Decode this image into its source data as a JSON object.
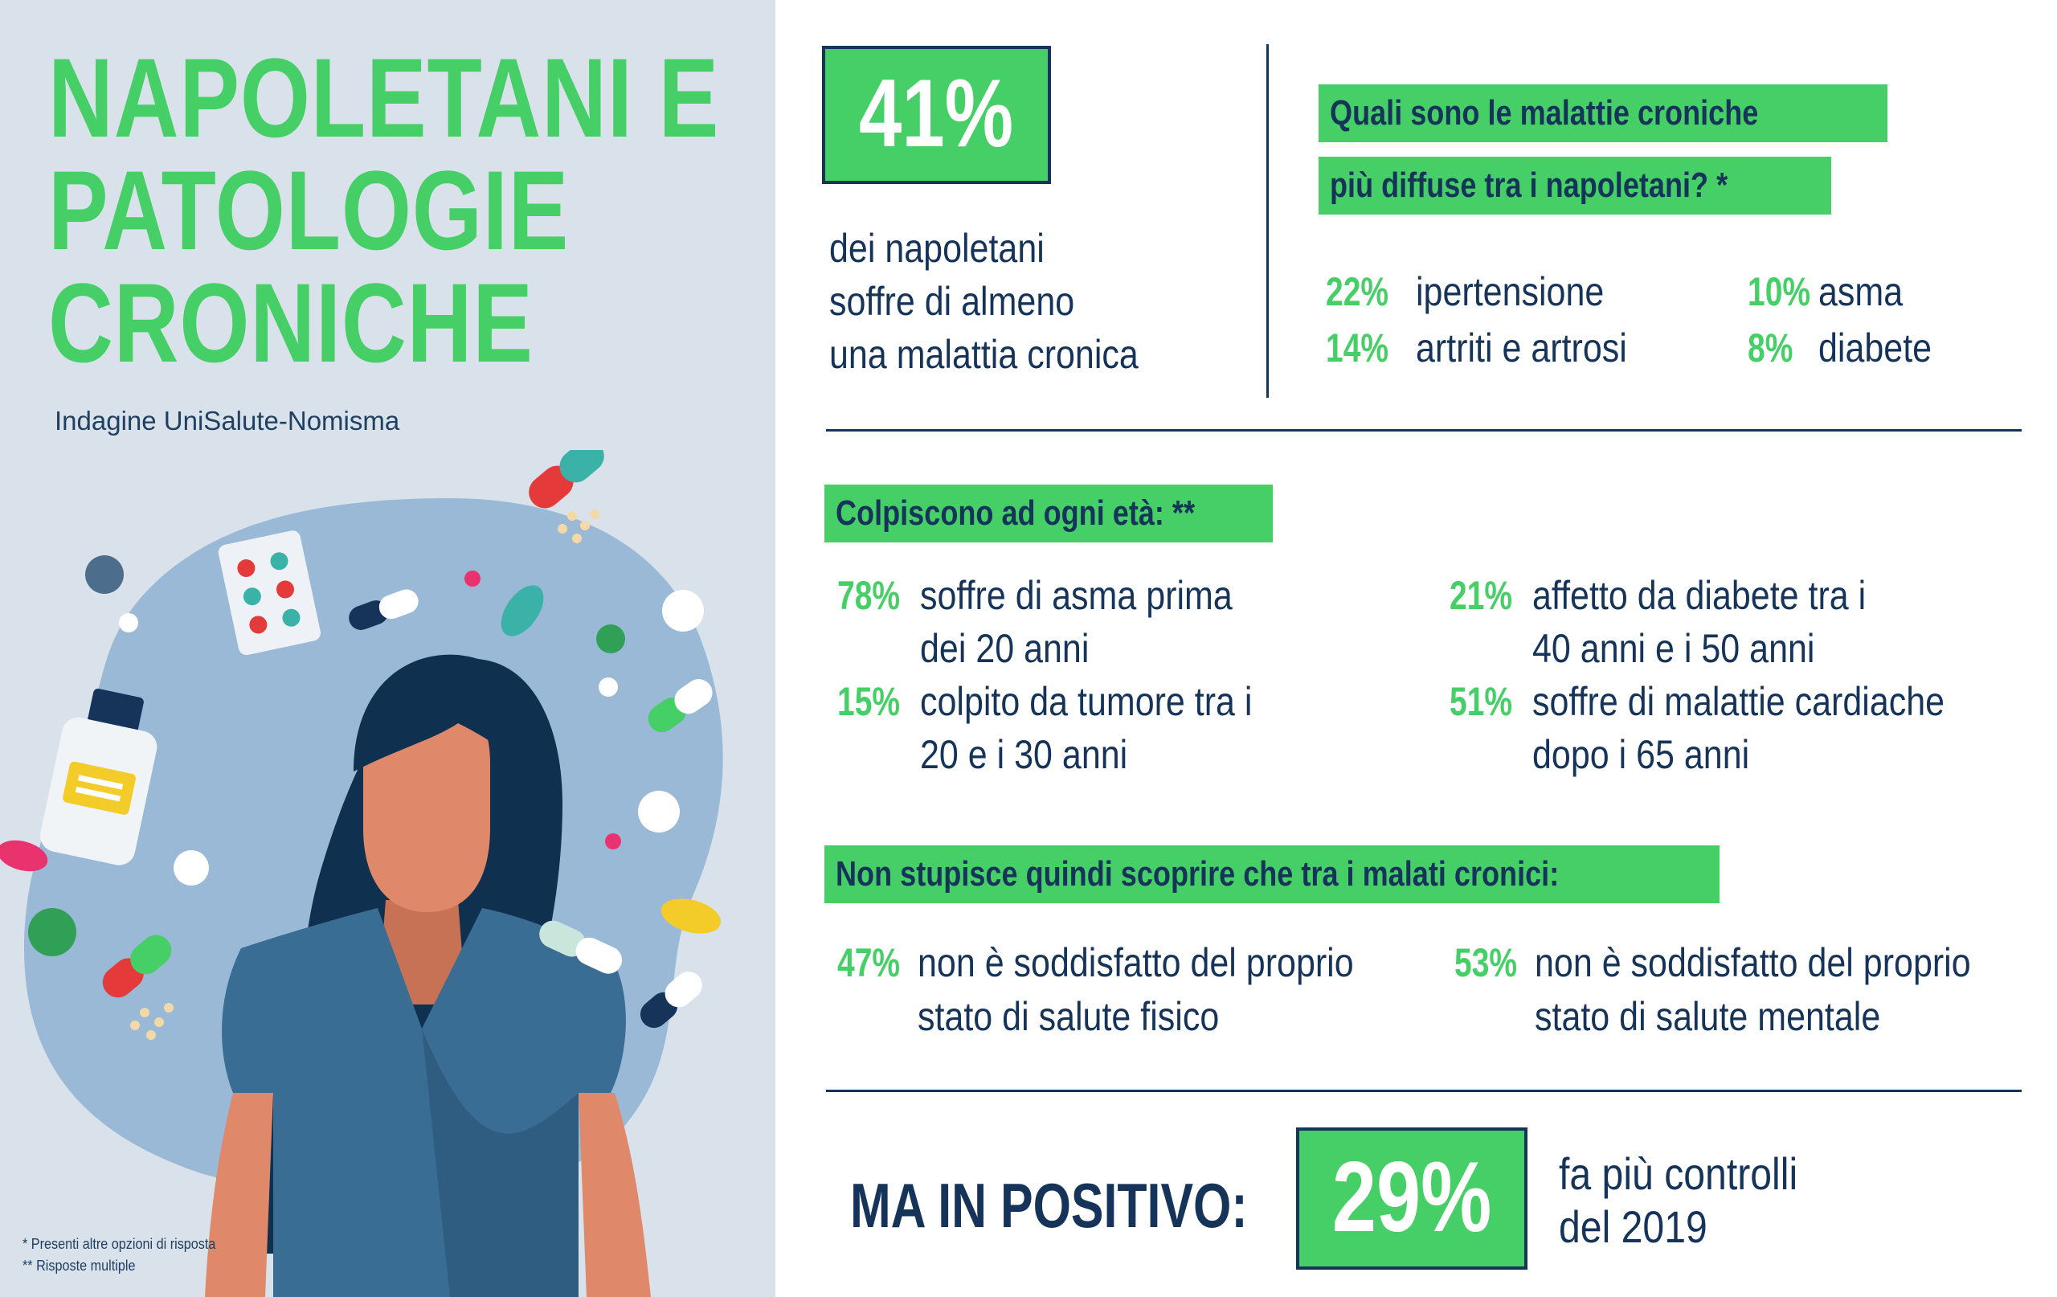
{
  "title": {
    "line1": "NAPOLETANI E",
    "line2": "PATOLOGIE",
    "line3": "CRONICHE"
  },
  "subtitle": "Indagine UniSalute-Nomisma",
  "footnotes": {
    "one": "* Presenti altre opzioni di risposta",
    "two": "** Risposte multiple"
  },
  "headline": {
    "percent": "41%",
    "line1": "dei napoletani",
    "line2": "soffre di almeno",
    "line3": "una malattia cronica"
  },
  "diseases": {
    "question_line1": "Quali sono le malattie croniche",
    "question_line2": "più diffuse tra i napoletani? *",
    "items": [
      {
        "pct": "22%",
        "label": "ipertensione"
      },
      {
        "pct": "14%",
        "label": "artriti e artrosi"
      },
      {
        "pct": "10%",
        "label": "asma"
      },
      {
        "pct": "8%",
        "label": "diabete"
      }
    ]
  },
  "ages": {
    "heading": "Colpiscono ad ogni età: **",
    "items": [
      {
        "pct": "78%",
        "line1": "soffre di asma prima",
        "line2": "dei 20 anni"
      },
      {
        "pct": "15%",
        "line1": "colpito da tumore tra i",
        "line2": "20 e i 30 anni"
      },
      {
        "pct": "21%",
        "line1": "affetto da diabete tra i",
        "line2": "40 anni e i 50 anni"
      },
      {
        "pct": "51%",
        "line1": "soffre di malattie cardiache",
        "line2": "dopo i 65 anni"
      }
    ]
  },
  "satisfaction": {
    "heading": "Non stupisce quindi scoprire che tra i malati cronici:",
    "items": [
      {
        "pct": "47%",
        "line1": "non è soddisfatto del proprio",
        "line2": "stato di salute fisico"
      },
      {
        "pct": "53%",
        "line1": "non è soddisfatto del proprio",
        "line2": "stato di salute mentale"
      }
    ]
  },
  "positive": {
    "label": "MA IN POSITIVO:",
    "percent": "29%",
    "line1": "fa più controlli",
    "line2": "del 2019"
  },
  "colors": {
    "green": "#45cf66",
    "navy": "#16345a",
    "panel_bg": "#d9e2ea",
    "blob": "#9ab9d6"
  }
}
